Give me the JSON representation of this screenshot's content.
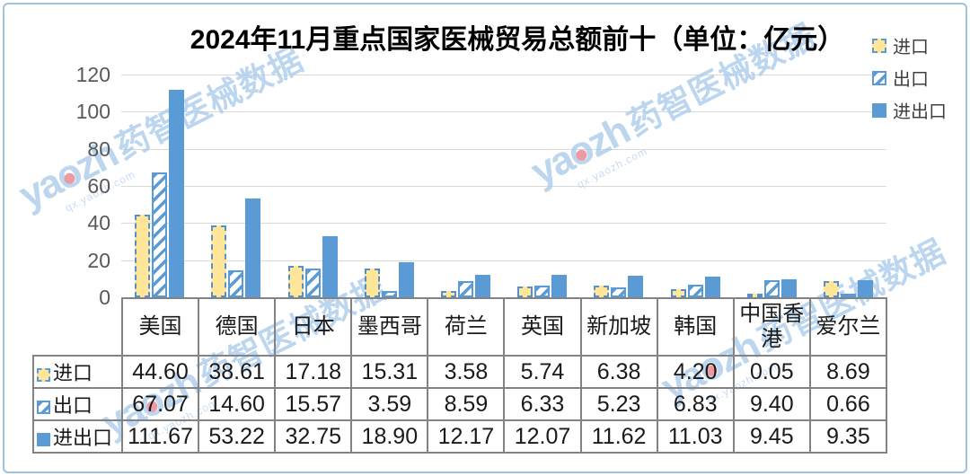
{
  "page": {
    "frame_color": "#9CC3E6",
    "background": "#FFFFFF"
  },
  "title": "2024年11月重点国家医械贸易总额前十（单位：亿元）",
  "watermark": {
    "brand_prefix": "ya",
    "brand_o": "o",
    "brand_suffix": "zh",
    "brand_cn": "药智医械数据",
    "url": "qx.yaozh.com"
  },
  "colors": {
    "bar_total": "#5B9BD5",
    "bar_import_fill": "#FFE699",
    "bar_outline": "#5B9BD5",
    "gridline": "#D9D9D9",
    "axis_label": "#595959",
    "table_border": "#838383",
    "watermark_text": "#A9CBEA",
    "watermark_dot": "#E87F88"
  },
  "chart_data": {
    "type": "bar",
    "title": "2024年11月重点国家医械贸易总额前十（单位：亿元）",
    "unit": "亿元",
    "categories": [
      "美国",
      "德国",
      "日本",
      "墨西哥",
      "荷兰",
      "英国",
      "新加坡",
      "韩国",
      "中国香港",
      "爱尔兰"
    ],
    "series": [
      {
        "name": "进口",
        "values": [
          44.6,
          38.61,
          17.18,
          15.31,
          3.58,
          5.74,
          6.38,
          4.2,
          0.05,
          8.69
        ]
      },
      {
        "name": "出口",
        "values": [
          67.07,
          14.6,
          15.57,
          3.59,
          8.59,
          6.33,
          5.23,
          6.83,
          9.4,
          0.66
        ]
      },
      {
        "name": "进出口",
        "values": [
          111.67,
          53.22,
          32.75,
          18.9,
          12.17,
          12.07,
          11.62,
          11.03,
          9.45,
          9.35
        ]
      }
    ],
    "ylim": [
      0,
      120
    ],
    "ytick_interval": 20,
    "yticks": [
      0,
      20,
      40,
      60,
      80,
      100,
      120
    ],
    "grid": true,
    "legend_position": "top-right",
    "value_decimals": 2
  }
}
